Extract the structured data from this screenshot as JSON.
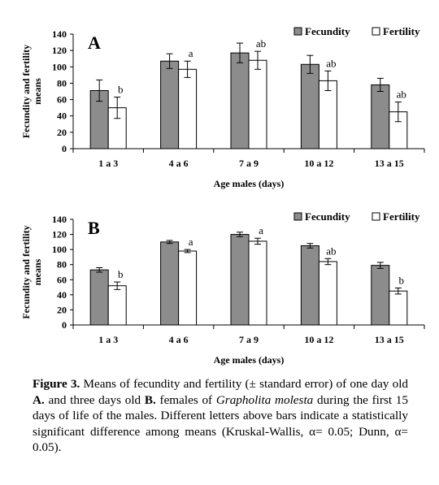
{
  "figure": {
    "caption": {
      "label": "Figure 3.",
      "part1": " Means of fecundity and fertility (± standard error) of one day old ",
      "a_ref": "A.",
      "part2": " and three days old ",
      "b_ref": "B.",
      "part3": " females of ",
      "species": "Grapholita molesta",
      "part4": " during the first 15 days of life of the males. Different letters above bars indicate a statistically significant difference among means (Kruskal-Wallis, α= 0.05; Dunn, α= 0.05)."
    }
  },
  "chart_data": [
    {
      "type": "bar",
      "panel": "A",
      "xlabel": "Age males (days)",
      "ylabel": "Fecundity and fertility means",
      "ylim": [
        0,
        140
      ],
      "yticks": [
        0,
        20,
        40,
        60,
        80,
        100,
        120,
        140
      ],
      "grid": false,
      "legend_position": "top-right",
      "categories": [
        "1 a 3",
        "4 a 6",
        "7 a 9",
        "10 a 12",
        "13 a 15"
      ],
      "series": [
        {
          "name": "Fecundity",
          "color": "#8c8c8c",
          "values": [
            71,
            107,
            117,
            103,
            78
          ],
          "errors": [
            13,
            9,
            12,
            11,
            8
          ]
        },
        {
          "name": "Fertility",
          "color": "#ffffff",
          "values": [
            50,
            97,
            108,
            83,
            45
          ],
          "errors": [
            13,
            10,
            11,
            12,
            12
          ]
        }
      ],
      "annotations": [
        "b",
        "a",
        "ab",
        "ab",
        "ab"
      ]
    },
    {
      "type": "bar",
      "panel": "B",
      "xlabel": "Age males (days)",
      "ylabel": "Fecundity and fertility means",
      "ylim": [
        0,
        140
      ],
      "yticks": [
        0,
        20,
        40,
        60,
        80,
        100,
        120,
        140
      ],
      "grid": false,
      "legend_position": "top-right",
      "categories": [
        "1 a 3",
        "4 a 6",
        "7 a 9",
        "10 a 12",
        "13 a 15"
      ],
      "series": [
        {
          "name": "Fecundity",
          "color": "#8c8c8c",
          "values": [
            73,
            110,
            120,
            105,
            79
          ],
          "errors": [
            3,
            2,
            3,
            3,
            4
          ]
        },
        {
          "name": "Fertility",
          "color": "#ffffff",
          "values": [
            52,
            98,
            111,
            84,
            45
          ],
          "errors": [
            5,
            2,
            4,
            4,
            4
          ]
        }
      ],
      "annotations": [
        "b",
        "a",
        "a",
        "ab",
        "b"
      ]
    }
  ]
}
